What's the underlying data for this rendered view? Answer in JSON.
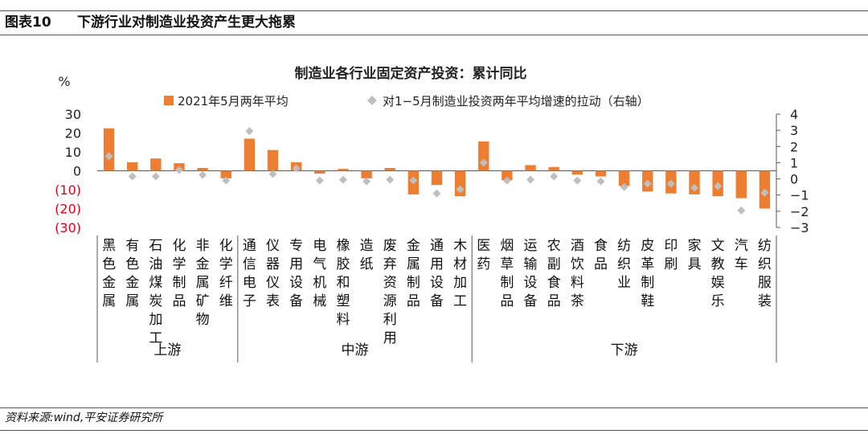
{
  "figure": {
    "label": "图表10",
    "title": "下游行业对制造业投资产生更大拖累",
    "source": "资料来源:wind,平安证券研究所"
  },
  "colors": {
    "bar": "#ED7D31",
    "marker": "#BFBFBF",
    "negative_tick": "#E0001B",
    "axis": "#595959"
  },
  "chart_data": {
    "type": "bar",
    "title": "制造业各行业固定资产投资：累计同比",
    "ylabel": "%",
    "ylim": [
      -30,
      30
    ],
    "y_ticks": [
      "30",
      "20",
      "10",
      "0",
      "(10)",
      "(20)",
      "(30)"
    ],
    "y_tick_values": [
      30,
      20,
      10,
      0,
      -10,
      -20,
      -30
    ],
    "y2lim": [
      -3,
      4
    ],
    "y2_ticks": [
      "4",
      "3",
      "2",
      "1",
      "0",
      "−1",
      "−2",
      "−3"
    ],
    "y2_tick_values": [
      4,
      3,
      2,
      1,
      0,
      -1,
      -2,
      -3
    ],
    "legend": "top",
    "categories": [
      "黑色金属",
      "有色金属",
      "石油煤炭加工",
      "化学制品",
      "非金属矿物",
      "化学纤维",
      "通信电子",
      "仪器仪表",
      "专用设备",
      "电气机械",
      "橡胶和塑料",
      "造纸",
      "废弃资源利用",
      "金属制品",
      "通用设备",
      "木材加工",
      "医药",
      "烟草制品",
      "运输设备",
      "农副食品",
      "酒饮料茶",
      "食品",
      "纺织业",
      "皮革制鞋",
      "印刷",
      "家具",
      "文教娱乐",
      "汽车",
      "纺织服装"
    ],
    "series": [
      {
        "name": "2021年5月两年平均",
        "type": "bar",
        "axis": "left",
        "values": [
          22.5,
          4.5,
          6.5,
          4.0,
          1.5,
          -4.0,
          17.0,
          11.0,
          4.5,
          -1.5,
          1.0,
          -4.0,
          1.5,
          -12.5,
          -7.5,
          -13.5,
          15.5,
          -5.0,
          3.0,
          2.0,
          -2.0,
          -3.0,
          -8.0,
          -11.0,
          -12.0,
          -12.5,
          -13.5,
          -14.5,
          -20.0
        ]
      },
      {
        "name": "对1−5月制造业投资两年平均增速的拉动（右轴）",
        "type": "scatter",
        "axis": "right",
        "values": [
          1.4,
          0.15,
          0.15,
          0.55,
          0.25,
          -0.1,
          2.95,
          0.3,
          0.65,
          -0.1,
          -0.05,
          -0.15,
          -0.05,
          -0.1,
          -0.9,
          -0.65,
          1.0,
          -0.1,
          -0.05,
          0.15,
          -0.1,
          -0.15,
          -0.5,
          -0.3,
          -0.3,
          -0.55,
          -0.45,
          -1.95,
          -0.85
        ]
      }
    ],
    "groups": [
      {
        "name": "上游",
        "count": 6
      },
      {
        "name": "中游",
        "count": 10
      },
      {
        "name": "下游",
        "count": 13
      }
    ]
  }
}
